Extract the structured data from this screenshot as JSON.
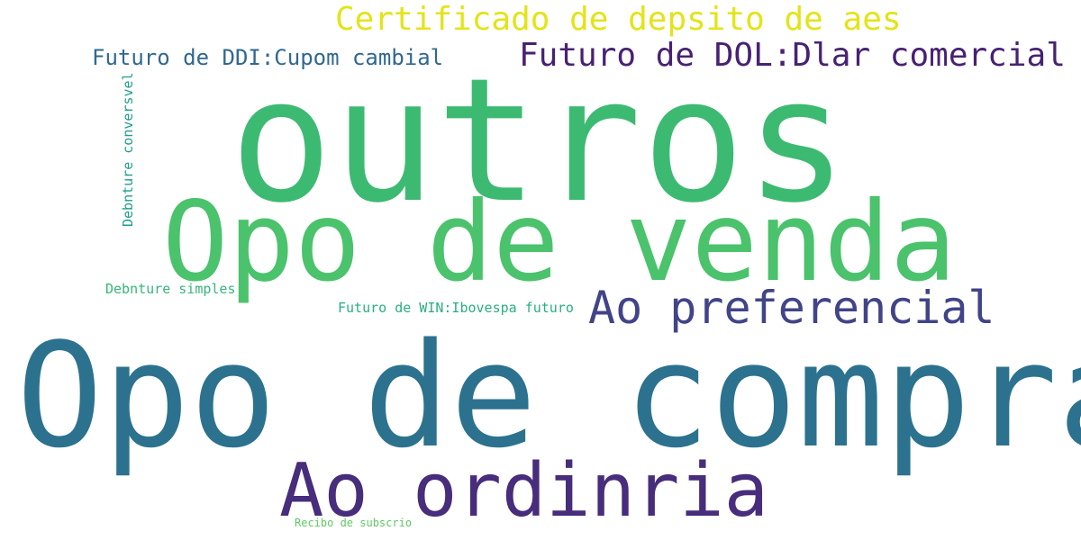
{
  "words": [
    {
      "id": "outros",
      "text": "outros",
      "color": "#3dba72"
    },
    {
      "id": "opo_venda",
      "text": "Opo de venda",
      "color": "#4bc26c"
    },
    {
      "id": "opo_compra",
      "text": "Opo de compra",
      "color": "#2c728e"
    },
    {
      "id": "ao_ordinaria",
      "text": "Ao ordinria",
      "color": "#472d7b"
    },
    {
      "id": "ao_preferencial",
      "text": "Ao preferencial",
      "color": "#414487"
    },
    {
      "id": "certificado",
      "text": "Certificado de depsito de aes",
      "color": "#e3e418"
    },
    {
      "id": "futuro_dol",
      "text": "Futuro de DOL:Dlar comercial",
      "color": "#482173"
    },
    {
      "id": "futuro_ddi",
      "text": "Futuro de DDI:Cupom cambial",
      "color": "#31688e"
    },
    {
      "id": "futuro_win",
      "text": "Futuro de WIN:Ibovespa futuro",
      "color": "#29af7f"
    },
    {
      "id": "debenture_simples",
      "text": "Debnture simples",
      "color": "#35b779"
    },
    {
      "id": "debenture_conversivel",
      "text": "Debnture conversvel",
      "color": "#1f9e89"
    },
    {
      "id": "recibo",
      "text": "Recibo de subscrio",
      "color": "#5ec962"
    }
  ]
}
